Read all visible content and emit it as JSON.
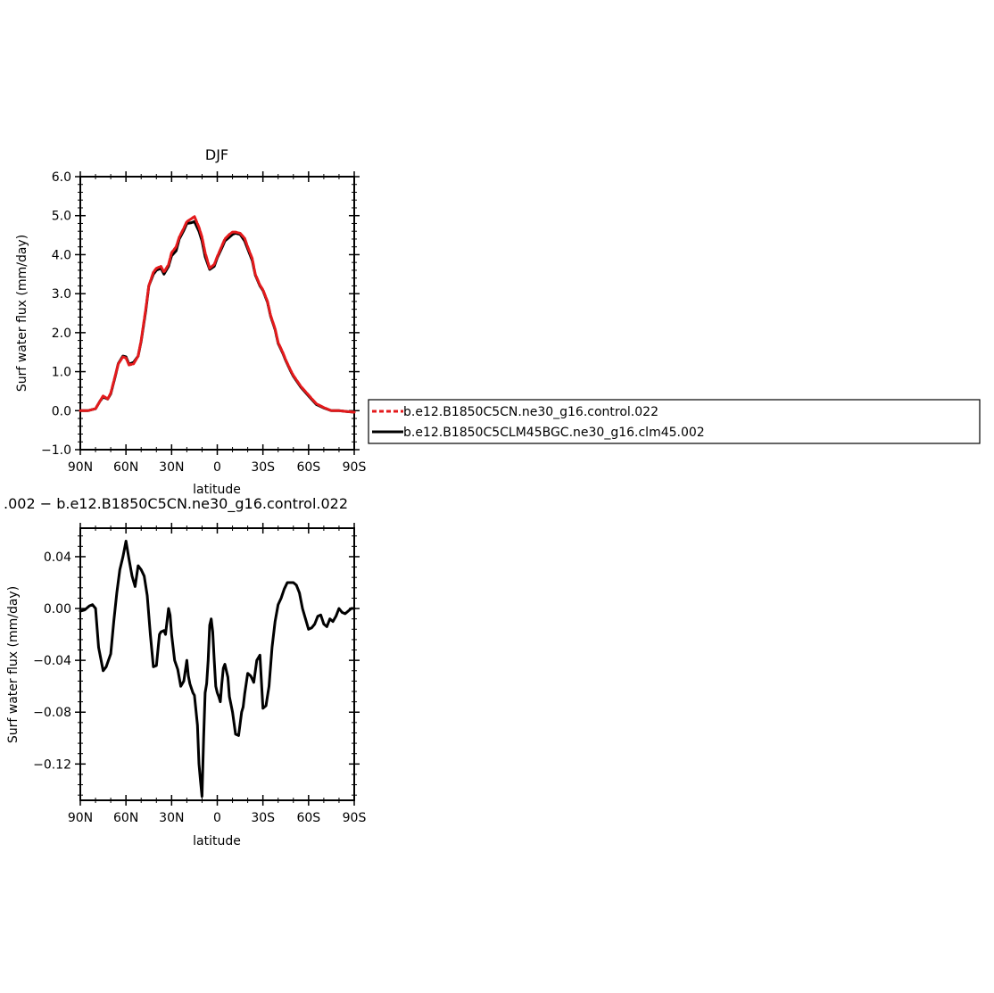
{
  "chart_data": [
    {
      "type": "line",
      "title": "DJF",
      "xlabel": "latitude",
      "ylabel": "Surf water flux (mm/day)",
      "xlim": [
        90,
        -90
      ],
      "ylim": [
        -1.0,
        6.0
      ],
      "x_tick_values": [
        90,
        60,
        30,
        0,
        -30,
        -60,
        -90
      ],
      "x_tick_labels": [
        "90N",
        "60N",
        "30N",
        "0",
        "30S",
        "60S",
        "90S"
      ],
      "y_tick_values": [
        -1,
        0,
        1,
        2,
        3,
        4,
        5,
        6
      ],
      "y_tick_labels": [
        "−1.0",
        "0.0",
        "1.0",
        "2.0",
        "3.0",
        "4.0",
        "5.0",
        "6.0"
      ],
      "legend_position": "right",
      "legend": [
        "b.e12.B1850C5CN.ne30_g16.control.022",
        "b.e12.B1850C5CLM45BGC.ne30_g16.clm45.002"
      ],
      "colors": [
        "#e41a1c",
        "#000000"
      ],
      "x": [
        90,
        85,
        80,
        77,
        75,
        72,
        70,
        67,
        65,
        62,
        60,
        58,
        55,
        52,
        50,
        47,
        45,
        42,
        40,
        37,
        35,
        32,
        30,
        27,
        25,
        22,
        20,
        17,
        15,
        12,
        10,
        8,
        5,
        2,
        0,
        -3,
        -5,
        -8,
        -10,
        -12,
        -15,
        -18,
        -20,
        -23,
        -25,
        -28,
        -30,
        -33,
        -35,
        -38,
        -40,
        -43,
        -45,
        -48,
        -50,
        -55,
        -60,
        -65,
        -70,
        -75,
        -80,
        -85,
        -90
      ],
      "series": [
        {
          "name": "b.e12.B1850C5CN.ne30_g16.control.022",
          "style": "dashed",
          "values": [
            0.0,
            0.0,
            0.05,
            0.25,
            0.38,
            0.3,
            0.45,
            0.9,
            1.2,
            1.38,
            1.35,
            1.17,
            1.2,
            1.4,
            1.8,
            2.6,
            3.2,
            3.55,
            3.65,
            3.7,
            3.55,
            3.75,
            4.05,
            4.2,
            4.45,
            4.68,
            4.85,
            4.92,
            4.98,
            4.7,
            4.45,
            4.05,
            3.65,
            3.75,
            3.95,
            4.22,
            4.4,
            4.52,
            4.58,
            4.58,
            4.55,
            4.42,
            4.2,
            3.9,
            3.5,
            3.22,
            3.1,
            2.8,
            2.45,
            2.1,
            1.75,
            1.5,
            1.3,
            1.05,
            0.9,
            0.62,
            0.4,
            0.18,
            0.08,
            0.0,
            0.0,
            -0.02,
            -0.04
          ]
        },
        {
          "name": "b.e12.B1850C5CLM45BGC.ne30_g16.clm45.002",
          "style": "solid",
          "values": [
            0.0,
            0.0,
            0.05,
            0.25,
            0.35,
            0.3,
            0.43,
            0.88,
            1.21,
            1.4,
            1.38,
            1.19,
            1.24,
            1.4,
            1.78,
            2.55,
            3.2,
            3.5,
            3.6,
            3.65,
            3.5,
            3.7,
            3.97,
            4.1,
            4.4,
            4.62,
            4.8,
            4.82,
            4.85,
            4.6,
            4.35,
            3.95,
            3.62,
            3.7,
            3.92,
            4.17,
            4.35,
            4.45,
            4.52,
            4.55,
            4.52,
            4.35,
            4.15,
            3.85,
            3.48,
            3.2,
            3.08,
            2.78,
            2.43,
            2.08,
            1.73,
            1.48,
            1.28,
            1.03,
            0.88,
            0.6,
            0.38,
            0.16,
            0.07,
            0.0,
            0.0,
            -0.02,
            -0.04
          ]
        }
      ]
    },
    {
      "type": "line",
      "title": ".002 − b.e12.B1850C5CN.ne30_g16.control.022",
      "xlabel": "latitude",
      "ylabel": "Surf water flux (mm/day)",
      "xlim": [
        90,
        -90
      ],
      "ylim": [
        -0.148,
        0.062
      ],
      "x_tick_values": [
        90,
        60,
        30,
        0,
        -30,
        -60,
        -90
      ],
      "x_tick_labels": [
        "90N",
        "60N",
        "30N",
        "0",
        "30S",
        "60S",
        "90S"
      ],
      "y_tick_values": [
        0.04,
        0.0,
        -0.04,
        -0.08,
        -0.12
      ],
      "y_tick_labels": [
        "0.04",
        "0.00",
        "−0.04",
        "−0.08",
        "−0.12"
      ],
      "color": "#000000",
      "x": [
        90,
        87,
        84,
        82,
        80,
        78,
        75,
        73,
        70,
        68,
        66,
        64,
        62,
        60,
        58,
        56,
        54,
        52,
        50,
        48,
        46,
        44,
        42,
        40,
        38,
        37,
        35,
        34,
        32,
        31,
        30,
        28,
        26,
        24,
        22,
        20,
        19,
        18,
        16,
        15,
        13,
        12,
        11,
        10,
        9,
        8,
        7,
        6,
        5,
        4,
        3,
        2,
        1,
        0,
        -1,
        -2,
        -3,
        -4,
        -5,
        -6,
        -7,
        -8,
        -10,
        -12,
        -14,
        -16,
        -17,
        -18,
        -20,
        -22,
        -24,
        -26,
        -28,
        -30,
        -32,
        -34,
        -36,
        -38,
        -40,
        -42,
        -44,
        -46,
        -48,
        -50,
        -52,
        -54,
        -56,
        -58,
        -60,
        -62,
        -64,
        -66,
        -68,
        -70,
        -72,
        -74,
        -76,
        -78,
        -80,
        -82,
        -84,
        -86,
        -88,
        -90
      ],
      "values": [
        -0.002,
        -0.001,
        0.002,
        0.003,
        0.0,
        -0.03,
        -0.048,
        -0.045,
        -0.035,
        -0.01,
        0.012,
        0.03,
        0.04,
        0.052,
        0.038,
        0.025,
        0.017,
        0.033,
        0.03,
        0.025,
        0.01,
        -0.02,
        -0.045,
        -0.044,
        -0.02,
        -0.018,
        -0.017,
        -0.02,
        0.0,
        -0.005,
        -0.02,
        -0.04,
        -0.047,
        -0.06,
        -0.056,
        -0.04,
        -0.052,
        -0.058,
        -0.065,
        -0.067,
        -0.09,
        -0.12,
        -0.133,
        -0.145,
        -0.1,
        -0.065,
        -0.058,
        -0.04,
        -0.013,
        -0.008,
        -0.018,
        -0.04,
        -0.06,
        -0.065,
        -0.068,
        -0.072,
        -0.058,
        -0.046,
        -0.043,
        -0.048,
        -0.053,
        -0.068,
        -0.08,
        -0.097,
        -0.098,
        -0.08,
        -0.076,
        -0.066,
        -0.05,
        -0.052,
        -0.057,
        -0.04,
        -0.036,
        -0.077,
        -0.075,
        -0.06,
        -0.03,
        -0.01,
        0.003,
        0.008,
        0.015,
        0.02,
        0.02,
        0.02,
        0.018,
        0.012,
        0.0,
        -0.008,
        -0.016,
        -0.015,
        -0.012,
        -0.006,
        -0.005,
        -0.012,
        -0.014,
        -0.008,
        -0.01,
        -0.006,
        0.0,
        -0.003,
        -0.004,
        -0.002,
        0.0,
        0.0
      ]
    }
  ]
}
